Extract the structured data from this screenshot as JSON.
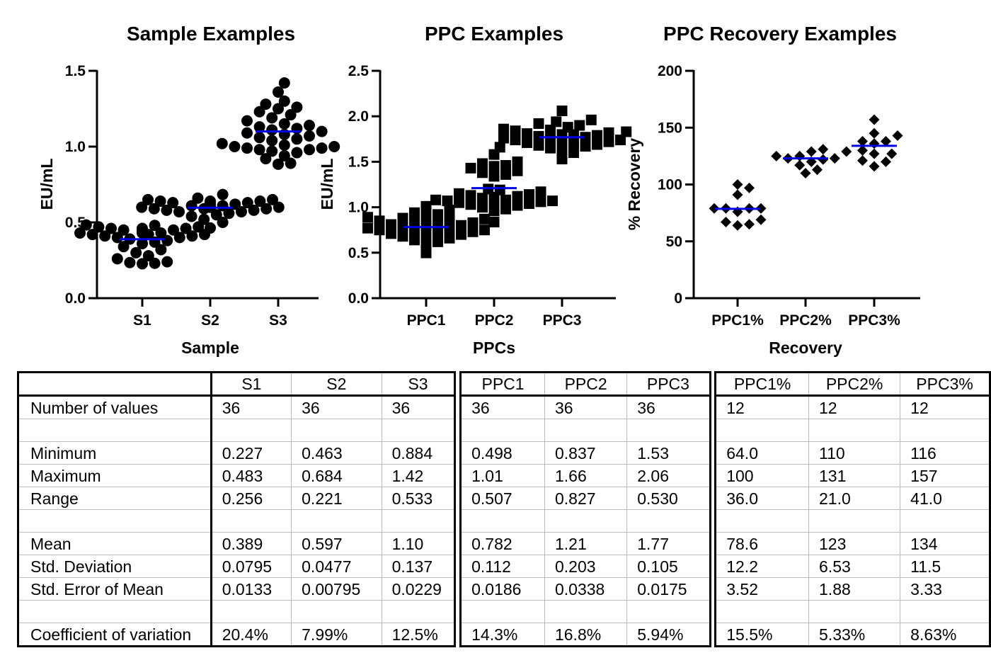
{
  "chart_data": [
    {
      "type": "scatter",
      "title": "Sample Examples",
      "xlabel": "Sample",
      "ylabel": "EU/mL",
      "ylim": [
        0,
        1.5
      ],
      "yticks": [
        "0.0",
        "0.5",
        "1.0",
        "1.5"
      ],
      "ytick_values": [
        0,
        0.5,
        1.0,
        1.5
      ],
      "categories": [
        "S1",
        "S2",
        "S3"
      ],
      "marker": "circle",
      "mean_line_color": "#0000e6",
      "means": [
        0.389,
        0.597,
        1.1
      ],
      "series": [
        {
          "name": "S1",
          "values": [
            0.227,
            0.23,
            0.235,
            0.24,
            0.26,
            0.28,
            0.3,
            0.32,
            0.34,
            0.36,
            0.37,
            0.38,
            0.39,
            0.4,
            0.4,
            0.41,
            0.41,
            0.42,
            0.42,
            0.42,
            0.43,
            0.43,
            0.43,
            0.44,
            0.44,
            0.44,
            0.45,
            0.45,
            0.45,
            0.46,
            0.46,
            0.46,
            0.47,
            0.47,
            0.48,
            0.483
          ]
        },
        {
          "name": "S2",
          "values": [
            0.463,
            0.5,
            0.52,
            0.54,
            0.55,
            0.56,
            0.57,
            0.57,
            0.58,
            0.58,
            0.59,
            0.59,
            0.59,
            0.6,
            0.6,
            0.6,
            0.6,
            0.61,
            0.61,
            0.61,
            0.61,
            0.62,
            0.62,
            0.62,
            0.62,
            0.63,
            0.63,
            0.63,
            0.63,
            0.64,
            0.64,
            0.64,
            0.65,
            0.65,
            0.66,
            0.684
          ]
        },
        {
          "name": "S3",
          "values": [
            0.884,
            0.89,
            0.92,
            0.94,
            0.96,
            0.97,
            0.98,
            0.98,
            0.99,
            0.99,
            1.0,
            1.0,
            1.01,
            1.02,
            1.04,
            1.05,
            1.06,
            1.07,
            1.08,
            1.09,
            1.1,
            1.11,
            1.12,
            1.13,
            1.14,
            1.15,
            1.17,
            1.19,
            1.21,
            1.23,
            1.25,
            1.26,
            1.28,
            1.3,
            1.36,
            1.42
          ]
        }
      ]
    },
    {
      "type": "scatter",
      "title": "PPC Examples",
      "xlabel": "PPCs",
      "ylabel": "EU/mL",
      "ylim": [
        0,
        2.5
      ],
      "yticks": [
        "0.0",
        "0.5",
        "1.0",
        "1.5",
        "2.0",
        "2.5"
      ],
      "ytick_values": [
        0,
        0.5,
        1.0,
        1.5,
        2.0,
        2.5
      ],
      "categories": [
        "PPC1",
        "PPC2",
        "PPC3"
      ],
      "marker": "square",
      "mean_line_color": "#0000e6",
      "means": [
        0.782,
        1.21,
        1.77
      ],
      "series": [
        {
          "name": "PPC1",
          "values": [
            0.498,
            0.6,
            0.62,
            0.64,
            0.66,
            0.68,
            0.7,
            0.7,
            0.71,
            0.72,
            0.73,
            0.74,
            0.75,
            0.75,
            0.76,
            0.77,
            0.78,
            0.78,
            0.79,
            0.79,
            0.8,
            0.8,
            0.81,
            0.82,
            0.83,
            0.84,
            0.85,
            0.86,
            0.87,
            0.88,
            0.89,
            0.9,
            0.92,
            0.94,
            0.97,
            1.01
          ]
        },
        {
          "name": "PPC2",
          "values": [
            0.837,
            0.96,
            0.98,
            1.0,
            1.02,
            1.03,
            1.04,
            1.05,
            1.06,
            1.06,
            1.07,
            1.07,
            1.08,
            1.08,
            1.09,
            1.1,
            1.1,
            1.11,
            1.12,
            1.13,
            1.14,
            1.15,
            1.17,
            1.19,
            1.2,
            1.34,
            1.36,
            1.38,
            1.4,
            1.43,
            1.45,
            1.46,
            1.48,
            1.5,
            1.58,
            1.66
          ]
        },
        {
          "name": "PPC3",
          "values": [
            1.53,
            1.6,
            1.63,
            1.65,
            1.67,
            1.68,
            1.69,
            1.7,
            1.71,
            1.72,
            1.73,
            1.74,
            1.74,
            1.75,
            1.76,
            1.76,
            1.77,
            1.77,
            1.78,
            1.78,
            1.79,
            1.79,
            1.8,
            1.8,
            1.81,
            1.82,
            1.83,
            1.84,
            1.85,
            1.86,
            1.88,
            1.9,
            1.92,
            1.94,
            1.96,
            2.06
          ]
        }
      ]
    },
    {
      "type": "scatter",
      "title": "PPC Recovery Examples",
      "xlabel": "Recovery",
      "ylabel": "% Recovery",
      "ylim": [
        0,
        200
      ],
      "yticks": [
        "0",
        "50",
        "100",
        "150",
        "200"
      ],
      "ytick_values": [
        0,
        50,
        100,
        150,
        200
      ],
      "categories": [
        "PPC1%",
        "PPC2%",
        "PPC3%"
      ],
      "marker": "diamond",
      "mean_line_color": "#0000e6",
      "means": [
        78.6,
        123,
        134
      ],
      "series": [
        {
          "name": "PPC1%",
          "values": [
            64.0,
            65,
            67,
            69,
            76,
            79,
            79,
            79,
            79,
            91,
            97,
            100
          ]
        },
        {
          "name": "PPC2%",
          "values": [
            110,
            113,
            117,
            120,
            122,
            123,
            123,
            125,
            125,
            129,
            129,
            131
          ]
        },
        {
          "name": "PPC3%",
          "values": [
            116,
            120,
            121,
            127,
            127,
            130,
            136,
            138,
            138,
            143,
            145,
            157
          ]
        }
      ]
    }
  ],
  "stats_table": {
    "row_labels": [
      "",
      "Number of values",
      "",
      "Minimum",
      "Maximum",
      "Range",
      "",
      "Mean",
      "Std. Deviation",
      "Std. Error of Mean",
      "",
      "Coefficient of variation"
    ],
    "groups": [
      {
        "headers": [
          "S1",
          "S2",
          "S3"
        ],
        "rows": [
          [
            "36",
            "36",
            "36"
          ],
          [
            "",
            "",
            ""
          ],
          [
            "0.227",
            "0.463",
            "0.884"
          ],
          [
            "0.483",
            "0.684",
            "1.42"
          ],
          [
            "0.256",
            "0.221",
            "0.533"
          ],
          [
            "",
            "",
            ""
          ],
          [
            "0.389",
            "0.597",
            "1.10"
          ],
          [
            "0.0795",
            "0.0477",
            "0.137"
          ],
          [
            "0.0133",
            "0.00795",
            "0.0229"
          ],
          [
            "",
            "",
            ""
          ],
          [
            "20.4%",
            "7.99%",
            "12.5%"
          ]
        ]
      },
      {
        "headers": [
          "PPC1",
          "PPC2",
          "PPC3"
        ],
        "rows": [
          [
            "36",
            "36",
            "36"
          ],
          [
            "",
            "",
            ""
          ],
          [
            "0.498",
            "0.837",
            "1.53"
          ],
          [
            "1.01",
            "1.66",
            "2.06"
          ],
          [
            "0.507",
            "0.827",
            "0.530"
          ],
          [
            "",
            "",
            ""
          ],
          [
            "0.782",
            "1.21",
            "1.77"
          ],
          [
            "0.112",
            "0.203",
            "0.105"
          ],
          [
            "0.0186",
            "0.0338",
            "0.0175"
          ],
          [
            "",
            "",
            ""
          ],
          [
            "14.3%",
            "16.8%",
            "5.94%"
          ]
        ]
      },
      {
        "headers": [
          "PPC1%",
          "PPC2%",
          "PPC3%"
        ],
        "rows": [
          [
            "12",
            "12",
            "12"
          ],
          [
            "",
            "",
            ""
          ],
          [
            "64.0",
            "110",
            "116"
          ],
          [
            "100",
            "131",
            "157"
          ],
          [
            "36.0",
            "21.0",
            "41.0"
          ],
          [
            "",
            "",
            ""
          ],
          [
            "78.6",
            "123",
            "134"
          ],
          [
            "12.2",
            "6.53",
            "11.5"
          ],
          [
            "3.52",
            "1.88",
            "3.33"
          ],
          [
            "",
            "",
            ""
          ],
          [
            "15.5%",
            "5.33%",
            "8.63%"
          ]
        ]
      }
    ]
  }
}
